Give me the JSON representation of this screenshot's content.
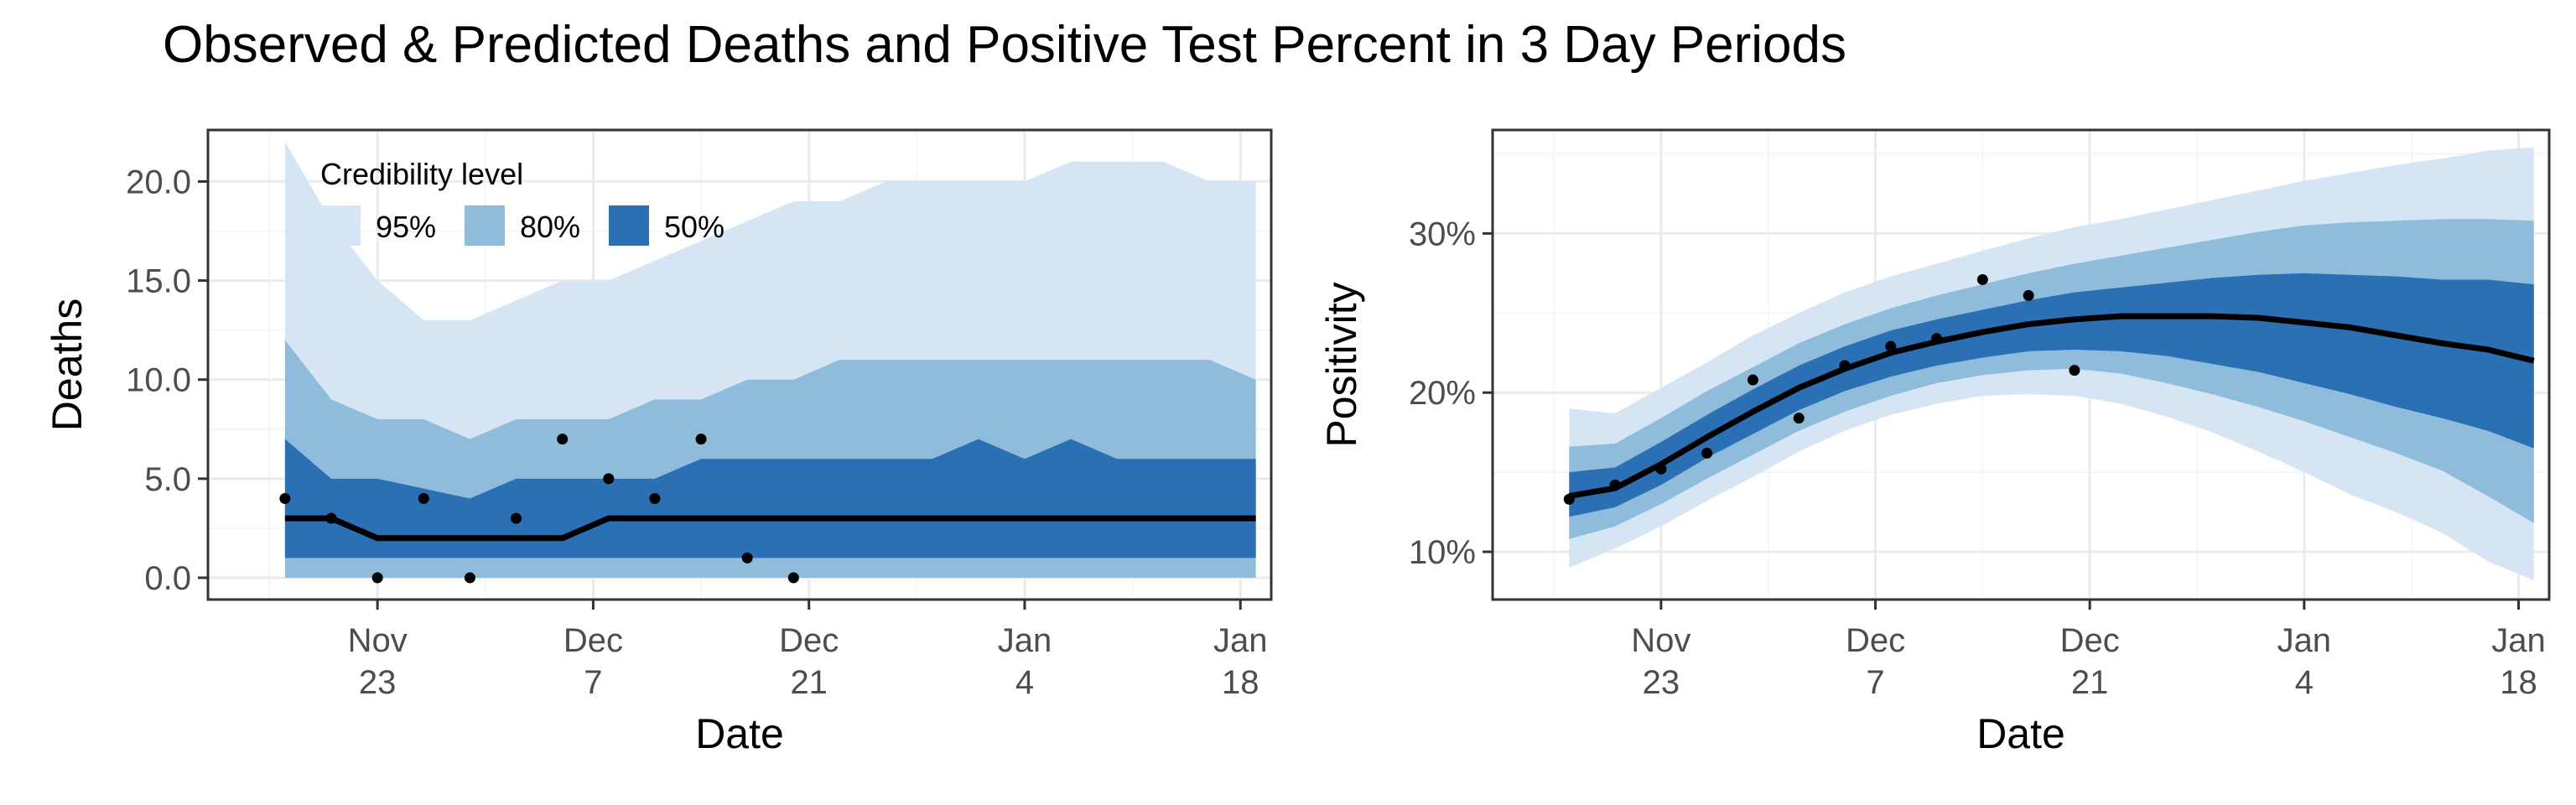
{
  "title": "Observed & Predicted Deaths and Positive Test Percent in 3 Day Periods",
  "colors": {
    "band95": "#d6e5f4",
    "band80": "#90bcdc",
    "band50": "#2b6fb4",
    "median": "#000000",
    "points": "#000000",
    "grid_major": "#ebebeb",
    "grid_minor": "#f5f5f5",
    "panel_border": "#333333"
  },
  "legend": {
    "title": "Credibility level",
    "items": [
      {
        "label": "95%",
        "color": "#d6e5f4"
      },
      {
        "label": "80%",
        "color": "#90bcdc"
      },
      {
        "label": "50%",
        "color": "#2b6fb4"
      }
    ],
    "placement": "top-left inside left panel"
  },
  "chart_data": [
    {
      "type": "area",
      "xlabel": "Date",
      "ylabel": "Deaths",
      "xlim": [
        "2020-11-12",
        "2021-01-20"
      ],
      "ylim": [
        -1.1,
        22.6
      ],
      "x_ticks": [
        {
          "date": "2020-11-23",
          "line1": "Nov",
          "line2": "23"
        },
        {
          "date": "2020-12-07",
          "line1": "Dec",
          "line2": "7"
        },
        {
          "date": "2020-12-21",
          "line1": "Dec",
          "line2": "21"
        },
        {
          "date": "2021-01-04",
          "line1": "Jan",
          "line2": "4"
        },
        {
          "date": "2021-01-18",
          "line1": "Jan",
          "line2": "18"
        }
      ],
      "y_ticks": [
        {
          "value": 0,
          "label": "0.0"
        },
        {
          "value": 5,
          "label": "5.0"
        },
        {
          "value": 10,
          "label": "10.0"
        },
        {
          "value": 15,
          "label": "15.0"
        },
        {
          "value": 20,
          "label": "20.0"
        }
      ],
      "grid": true,
      "dates": [
        "2020-11-17",
        "2020-11-20",
        "2020-11-23",
        "2020-11-26",
        "2020-11-29",
        "2020-12-02",
        "2020-12-05",
        "2020-12-08",
        "2020-12-11",
        "2020-12-14",
        "2020-12-17",
        "2020-12-20",
        "2020-12-23",
        "2020-12-26",
        "2020-12-29",
        "2021-01-01",
        "2021-01-04",
        "2021-01-07",
        "2021-01-10",
        "2021-01-13",
        "2021-01-16",
        "2021-01-19"
      ],
      "median": [
        3,
        3,
        2,
        2,
        2,
        2,
        2,
        3,
        3,
        3,
        3,
        3,
        3,
        3,
        3,
        3,
        3,
        3,
        3,
        3,
        3,
        3
      ],
      "band50": {
        "lower": [
          1,
          1,
          1,
          1,
          1,
          1,
          1,
          1,
          1,
          1,
          1,
          1,
          1,
          1,
          1,
          1,
          1,
          1,
          1,
          1,
          1,
          1
        ],
        "upper": [
          7,
          5,
          5,
          4.5,
          4,
          5,
          5,
          5,
          5,
          6,
          6,
          6,
          6,
          6,
          6,
          7,
          6,
          7,
          6,
          6,
          6,
          6
        ]
      },
      "band80": {
        "lower": [
          0,
          0,
          0,
          0,
          0,
          0,
          0,
          0,
          0,
          0,
          0,
          0,
          0,
          0,
          0,
          0,
          0,
          0,
          0,
          0,
          0,
          0
        ],
        "upper": [
          12,
          9,
          8,
          8,
          7,
          8,
          8,
          8,
          9,
          9,
          10,
          10,
          11,
          11,
          11,
          11,
          11,
          11,
          11,
          11,
          11,
          10
        ]
      },
      "band95": {
        "lower": [
          0,
          0,
          0,
          0,
          0,
          0,
          0,
          0,
          0,
          0,
          0,
          0,
          0,
          0,
          0,
          0,
          0,
          0,
          0,
          0,
          0,
          0
        ],
        "upper": [
          22,
          18,
          15,
          13,
          13,
          14,
          15,
          15,
          16,
          17,
          18,
          19,
          19,
          20,
          20,
          20,
          20,
          21,
          21,
          21,
          20,
          20
        ]
      },
      "observed": [
        {
          "date": "2020-11-17",
          "value": 4
        },
        {
          "date": "2020-11-20",
          "value": 3
        },
        {
          "date": "2020-11-23",
          "value": 0
        },
        {
          "date": "2020-11-26",
          "value": 4
        },
        {
          "date": "2020-11-29",
          "value": 0
        },
        {
          "date": "2020-12-02",
          "value": 3
        },
        {
          "date": "2020-12-05",
          "value": 7
        },
        {
          "date": "2020-12-08",
          "value": 5
        },
        {
          "date": "2020-12-11",
          "value": 4
        },
        {
          "date": "2020-12-14",
          "value": 7
        },
        {
          "date": "2020-12-17",
          "value": 1
        },
        {
          "date": "2020-12-20",
          "value": 0
        }
      ]
    },
    {
      "type": "area",
      "xlabel": "Date",
      "ylabel": "Positivity",
      "xlim": [
        "2020-11-12",
        "2021-01-20"
      ],
      "ylim": [
        7.0,
        36.5
      ],
      "x_ticks": [
        {
          "date": "2020-11-23",
          "line1": "Nov",
          "line2": "23"
        },
        {
          "date": "2020-12-07",
          "line1": "Dec",
          "line2": "7"
        },
        {
          "date": "2020-12-21",
          "line1": "Dec",
          "line2": "21"
        },
        {
          "date": "2021-01-04",
          "line1": "Jan",
          "line2": "4"
        },
        {
          "date": "2021-01-18",
          "line1": "Jan",
          "line2": "18"
        }
      ],
      "y_ticks": [
        {
          "value": 10,
          "label": "10%"
        },
        {
          "value": 20,
          "label": "20%"
        },
        {
          "value": 30,
          "label": "30%"
        }
      ],
      "grid": true,
      "dates": [
        "2020-11-17",
        "2020-11-20",
        "2020-11-23",
        "2020-11-26",
        "2020-11-29",
        "2020-12-02",
        "2020-12-05",
        "2020-12-08",
        "2020-12-11",
        "2020-12-14",
        "2020-12-17",
        "2020-12-20",
        "2020-12-23",
        "2020-12-26",
        "2020-12-29",
        "2021-01-01",
        "2021-01-04",
        "2021-01-07",
        "2021-01-10",
        "2021-01-13",
        "2021-01-16",
        "2021-01-19"
      ],
      "median": [
        13.5,
        14.0,
        15.5,
        17.2,
        18.8,
        20.3,
        21.5,
        22.5,
        23.2,
        23.8,
        24.3,
        24.6,
        24.8,
        24.8,
        24.8,
        24.7,
        24.4,
        24.1,
        23.6,
        23.1,
        22.7,
        22.0
      ],
      "band50": {
        "lower": [
          12.2,
          12.8,
          14.2,
          15.9,
          17.4,
          18.9,
          20.1,
          21.0,
          21.7,
          22.2,
          22.6,
          22.7,
          22.6,
          22.3,
          21.8,
          21.3,
          20.6,
          19.9,
          19.1,
          18.4,
          17.6,
          16.5
        ],
        "upper": [
          15.0,
          15.3,
          16.9,
          18.6,
          20.2,
          21.7,
          22.9,
          23.9,
          24.6,
          25.2,
          25.8,
          26.3,
          26.6,
          26.9,
          27.2,
          27.4,
          27.5,
          27.4,
          27.3,
          27.1,
          27.1,
          26.8
        ]
      },
      "band80": {
        "lower": [
          10.8,
          11.6,
          13.0,
          14.6,
          16.1,
          17.6,
          18.8,
          19.8,
          20.6,
          21.1,
          21.4,
          21.5,
          21.2,
          20.6,
          19.9,
          19.1,
          18.2,
          17.2,
          16.2,
          15.1,
          13.5,
          11.8
        ],
        "upper": [
          16.6,
          16.8,
          18.4,
          20.1,
          21.6,
          23.1,
          24.3,
          25.3,
          26.1,
          26.8,
          27.5,
          28.1,
          28.6,
          29.1,
          29.6,
          30.1,
          30.5,
          30.7,
          30.8,
          30.9,
          30.9,
          30.8
        ]
      },
      "band95": {
        "lower": [
          9.0,
          10.2,
          11.6,
          13.2,
          14.7,
          16.3,
          17.6,
          18.6,
          19.3,
          19.8,
          19.9,
          19.8,
          19.3,
          18.5,
          17.5,
          16.3,
          15.0,
          13.6,
          12.5,
          11.2,
          9.4,
          8.2
        ],
        "upper": [
          19.0,
          18.7,
          20.3,
          21.9,
          23.6,
          25.0,
          26.3,
          27.3,
          28.1,
          28.9,
          29.7,
          30.4,
          30.9,
          31.5,
          32.1,
          32.7,
          33.3,
          33.8,
          34.3,
          34.7,
          35.2,
          35.4
        ]
      },
      "observed": [
        {
          "date": "2020-11-17",
          "value": 13.3
        },
        {
          "date": "2020-11-20",
          "value": 14.2
        },
        {
          "date": "2020-11-23",
          "value": 15.2
        },
        {
          "date": "2020-11-26",
          "value": 16.2
        },
        {
          "date": "2020-11-29",
          "value": 20.8
        },
        {
          "date": "2020-12-02",
          "value": 18.4
        },
        {
          "date": "2020-12-05",
          "value": 21.7
        },
        {
          "date": "2020-12-08",
          "value": 22.9
        },
        {
          "date": "2020-12-11",
          "value": 23.4
        },
        {
          "date": "2020-12-14",
          "value": 27.1
        },
        {
          "date": "2020-12-17",
          "value": 26.1
        },
        {
          "date": "2020-12-20",
          "value": 21.4
        }
      ]
    }
  ]
}
